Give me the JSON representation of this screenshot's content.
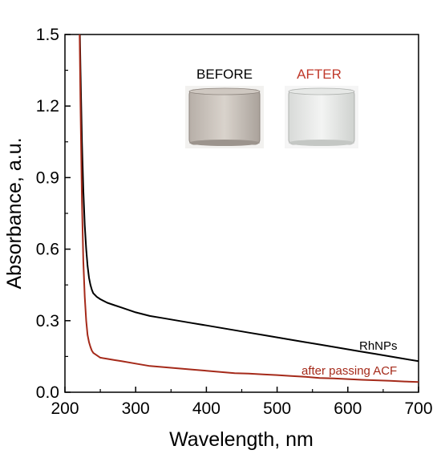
{
  "chart_data": {
    "type": "line",
    "xlabel": "Wavelength, nm",
    "ylabel": "Absorbance, a.u.",
    "xlim": [
      200,
      700
    ],
    "ylim": [
      0.0,
      1.5
    ],
    "x_ticks": [
      200,
      300,
      400,
      500,
      600,
      700
    ],
    "x_tick_labels": [
      "200",
      "300",
      "400",
      "500",
      "600",
      "700"
    ],
    "y_ticks": [
      0.0,
      0.3,
      0.6,
      0.9,
      1.2,
      1.5
    ],
    "y_tick_labels": [
      "0.0",
      "0.3",
      "0.6",
      "0.9",
      "1.2",
      "1.5"
    ],
    "grid": false,
    "series": [
      {
        "name": "RhNPs",
        "color": "#000000",
        "x": [
          220,
          222,
          224,
          226,
          228,
          230,
          232,
          234,
          236,
          238,
          240,
          245,
          250,
          260,
          270,
          280,
          300,
          320,
          340,
          360,
          380,
          400,
          420,
          440,
          460,
          480,
          500,
          520,
          540,
          560,
          580,
          600,
          620,
          640,
          660,
          680,
          700
        ],
        "y": [
          1.7,
          1.35,
          1.05,
          0.85,
          0.7,
          0.6,
          0.53,
          0.48,
          0.45,
          0.43,
          0.415,
          0.4,
          0.39,
          0.375,
          0.365,
          0.355,
          0.335,
          0.32,
          0.31,
          0.3,
          0.29,
          0.28,
          0.27,
          0.26,
          0.25,
          0.24,
          0.23,
          0.22,
          0.21,
          0.2,
          0.19,
          0.18,
          0.17,
          0.16,
          0.15,
          0.14,
          0.13
        ]
      },
      {
        "name": "after passing ACF",
        "color": "#a52a1a",
        "x": [
          220,
          222,
          224,
          226,
          228,
          230,
          232,
          234,
          236,
          238,
          240,
          245,
          250,
          260,
          270,
          280,
          300,
          320,
          340,
          360,
          380,
          400,
          420,
          440,
          460,
          480,
          500,
          520,
          540,
          560,
          580,
          600,
          620,
          640,
          660,
          680,
          700
        ],
        "y": [
          1.7,
          1.2,
          0.8,
          0.55,
          0.4,
          0.3,
          0.24,
          0.21,
          0.19,
          0.175,
          0.165,
          0.155,
          0.145,
          0.14,
          0.135,
          0.13,
          0.12,
          0.11,
          0.105,
          0.1,
          0.095,
          0.09,
          0.085,
          0.08,
          0.078,
          0.075,
          0.072,
          0.068,
          0.065,
          0.06,
          0.058,
          0.055,
          0.052,
          0.05,
          0.048,
          0.045,
          0.043
        ]
      }
    ],
    "annotations": [
      {
        "text": "RhNPs",
        "color": "#000000"
      },
      {
        "text": "after passing ACF",
        "color": "#a52a1a"
      }
    ]
  },
  "inset": {
    "before_label": "BEFORE",
    "before_color": "#000000",
    "after_label": "AFTER",
    "after_color": "#c0392b"
  }
}
